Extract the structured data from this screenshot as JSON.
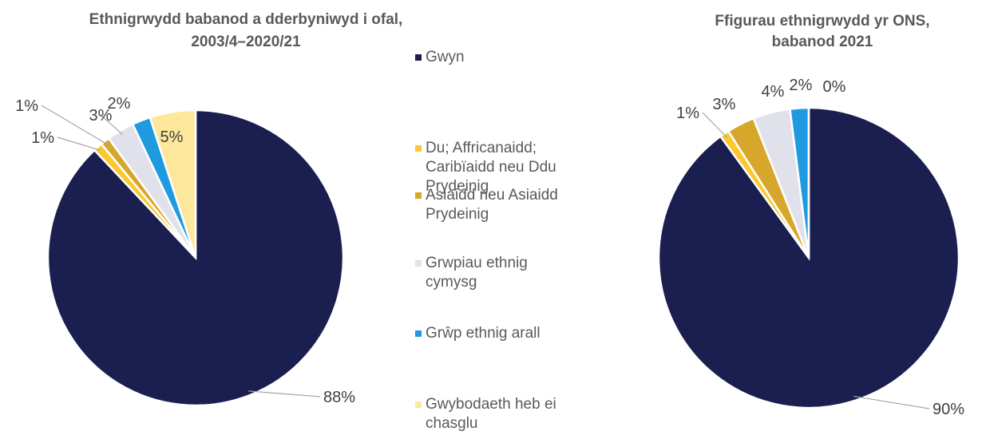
{
  "chart_data": [
    {
      "type": "pie",
      "title": "Ethnigrwydd babanod a dderbyniwyd i ofal, 2003/4–2020/21",
      "categories": [
        "Gwyn",
        "Du; Affricanaidd; Caribïaidd neu Ddu Prydeinig",
        "Asiaidd neu Asiaidd Prydeinig",
        "Grwpiau ethnig cymysg",
        "Grŵp ethnig arall",
        "Gwybodaeth heb ei chasglu"
      ],
      "values": [
        88,
        1,
        1,
        3,
        2,
        5
      ],
      "value_labels": [
        "88%",
        "1%",
        "1%",
        "3%",
        "2%",
        "5%"
      ],
      "colors": [
        "#1b1f4f",
        "#fdc82f",
        "#d6a72a",
        "#e1e1ec",
        "#1f9ae0",
        "#fde79c"
      ]
    },
    {
      "type": "pie",
      "title": "Ffigurau ethnigrwydd yr ONS, babanod 2021",
      "categories": [
        "Gwyn",
        "Du; Affricanaidd; Caribïaidd neu Ddu Prydeinig",
        "Asiaidd neu Asiaidd Prydeinig",
        "Grwpiau ethnig cymysg",
        "Grŵp ethnig arall",
        "Gwybodaeth heb ei chasglu"
      ],
      "values": [
        90,
        1,
        3,
        4,
        2,
        0
      ],
      "value_labels": [
        "90%",
        "1%",
        "3%",
        "4%",
        "2%",
        "0%"
      ],
      "colors": [
        "#1b1f4f",
        "#fdc82f",
        "#d6a72a",
        "#e1e1ec",
        "#1f9ae0",
        "#fde79c"
      ]
    }
  ]
}
